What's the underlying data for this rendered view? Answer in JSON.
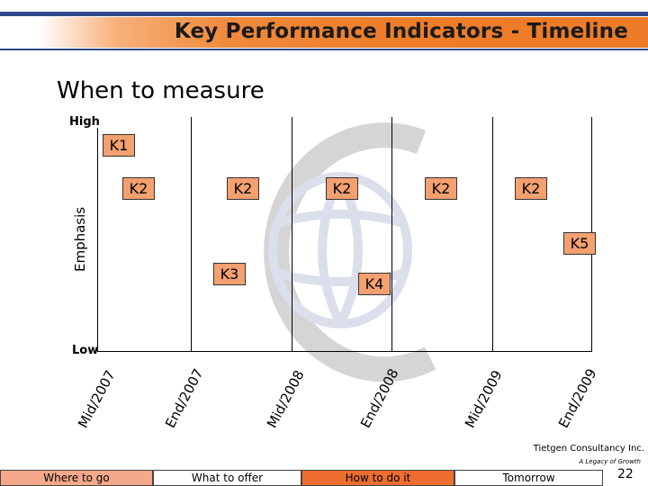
{
  "header": {
    "title": "Key Performance Indicators - Timeline"
  },
  "heading": "When to measure",
  "axis": {
    "high": "High",
    "low": "Low",
    "ylabel": "Emphasis"
  },
  "kpis": {
    "k1": "K1",
    "k2": "K2",
    "k3": "K3",
    "k4": "K4",
    "k5": "K5"
  },
  "timeline": [
    "Mid/2007",
    "End/2007",
    "Mid/2008",
    "End/2008",
    "Mid/2009",
    "End/2009"
  ],
  "footer": {
    "company": "Tietgen Consultancy Inc.",
    "tagline": "A Legacy of Growth",
    "nav": [
      "Where to go",
      "What to offer",
      "How to do it",
      "Tomorrow"
    ],
    "page": "22"
  },
  "colors": {
    "accent_orange": "#ee7b27",
    "accent_blue": "#2e4a8c",
    "kpi_fill": "#f4a070",
    "nav_active": "#ee6e30"
  }
}
